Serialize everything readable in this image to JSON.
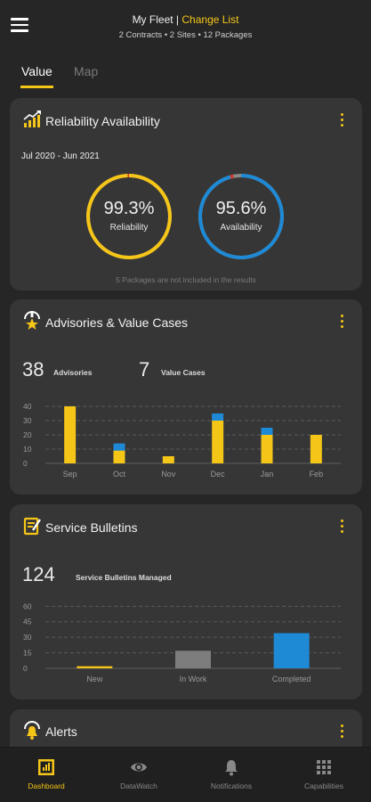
{
  "header": {
    "title": "My Fleet |",
    "change_link": "Change List",
    "subtitle": "2 Contracts • 2 Sites • 12 Packages"
  },
  "tabs": [
    {
      "label": "Value",
      "active": true
    },
    {
      "label": "Map",
      "active": false
    }
  ],
  "reliability_card": {
    "title": "Reliability Availability",
    "period": "Jul 2020 - Jun 2021",
    "gauges": [
      {
        "value": "99.3%",
        "label": "Reliability",
        "fraction": 0.993,
        "color": "#f5c518"
      },
      {
        "value": "95.6%",
        "label": "Availability",
        "fraction": 0.956,
        "color": "#1e8ad6"
      }
    ],
    "footnote": "5 Packages are not included in the results"
  },
  "advisories_card": {
    "title": "Advisories & Value Cases",
    "advisories_count": "38",
    "advisories_label": "Advisories",
    "value_cases_count": "7",
    "value_cases_label": "Value Cases"
  },
  "bulletins_card": {
    "title": "Service Bulletins",
    "count": "124",
    "count_label": "Service Bulletins Managed"
  },
  "alerts_card": {
    "title": "Alerts"
  },
  "nav": [
    {
      "label": "Dashboard",
      "icon": "dashboard-icon",
      "active": true
    },
    {
      "label": "DataWatch",
      "icon": "eye-icon",
      "active": false
    },
    {
      "label": "Notifications",
      "icon": "bell-icon",
      "active": false
    },
    {
      "label": "Capabilities",
      "icon": "grid-icon",
      "active": false
    }
  ],
  "colors": {
    "accent": "#f5c518",
    "blue": "#1e8ad6",
    "gray": "#7d7d7d"
  },
  "chart_data": [
    {
      "type": "bar",
      "stacked": true,
      "categories": [
        "Sep",
        "Oct",
        "Nov",
        "Dec",
        "Jan",
        "Feb"
      ],
      "yticks": [
        0,
        10,
        20,
        30,
        40
      ],
      "ylim": [
        0,
        45
      ],
      "series": [
        {
          "values": [
            40,
            9,
            5,
            30,
            20,
            20
          ],
          "color": "#f5c518"
        },
        {
          "values": [
            0,
            5,
            0,
            5,
            5,
            0
          ],
          "color": "#1e8ad6"
        }
      ],
      "grid": true
    },
    {
      "type": "bar",
      "categories": [
        "New",
        "In Work",
        "Completed"
      ],
      "yticks": [
        0,
        15,
        30,
        45,
        60
      ],
      "ylim": [
        0,
        62
      ],
      "values": [
        2,
        17,
        34
      ],
      "colors": [
        "#f5c518",
        "#7d7d7d",
        "#1e8ad6"
      ],
      "grid": true
    }
  ]
}
